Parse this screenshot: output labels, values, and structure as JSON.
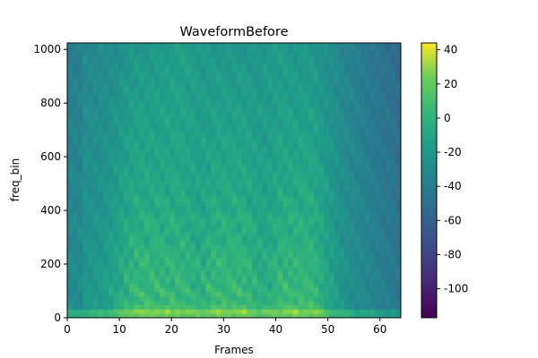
{
  "chart_data": {
    "type": "heatmap",
    "title": "WaveformBefore",
    "xlabel": "Frames",
    "ylabel": "freq_bin",
    "xlim": [
      0,
      64
    ],
    "ylim": [
      0,
      1024
    ],
    "x_ticks": [
      0,
      10,
      20,
      30,
      40,
      50,
      60
    ],
    "y_ticks": [
      0,
      200,
      400,
      600,
      800,
      1000
    ],
    "colorbar": {
      "colormap": "viridis",
      "range": [
        -117,
        44
      ],
      "ticks": [
        40,
        20,
        0,
        -20,
        -40,
        -60,
        -80,
        -100
      ]
    },
    "colors": {
      "low": "#440154",
      "mid": "#21918c",
      "high": "#fde725"
    }
  }
}
